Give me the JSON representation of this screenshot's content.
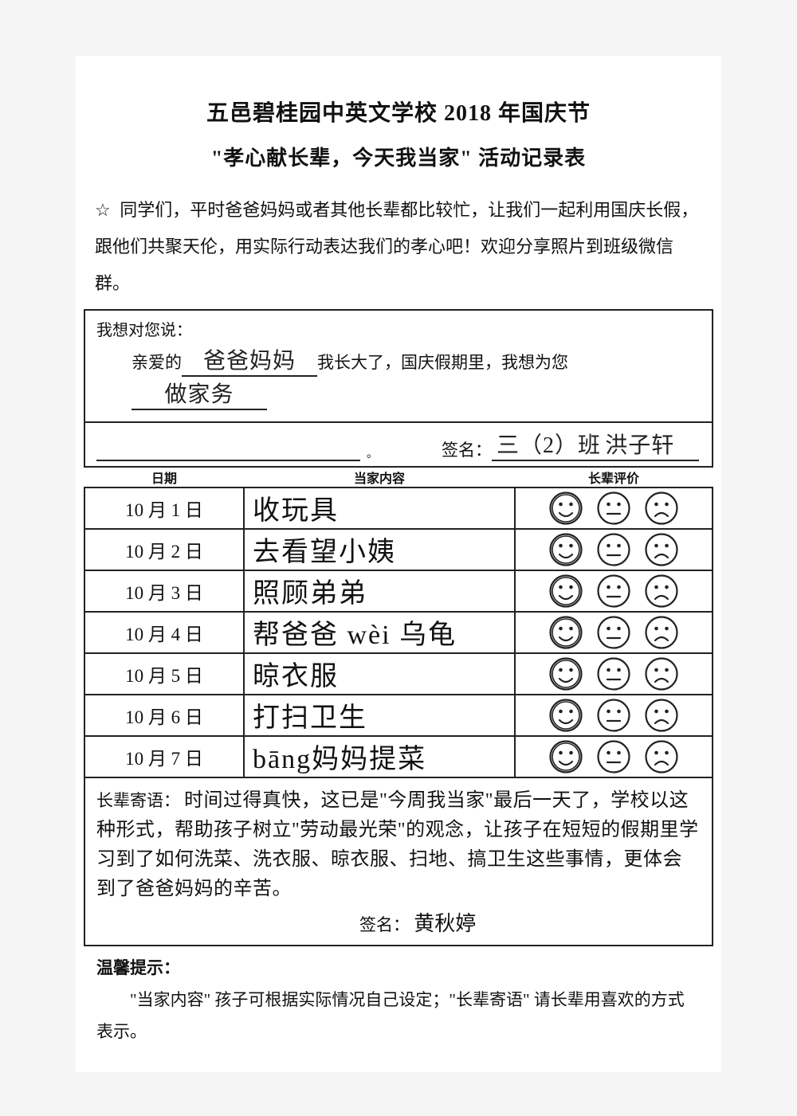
{
  "title_line1": "五邑碧桂园中英文学校 2018 年国庆节",
  "title_line2": "\"孝心献长辈，今天我当家\" 活动记录表",
  "star": "☆",
  "intro": "同学们，平时爸爸妈妈或者其他长辈都比较忙，让我们一起利用国庆长假，跟他们共聚天伦，用实际行动表达我们的孝心吧！欢迎分享照片到班级微信群。",
  "say_label": "我想对您说：",
  "dear_prefix": "亲爱的",
  "dear_fill": "爸爸妈妈",
  "dear_mid": "我长大了，国庆假期里，我想为您",
  "dear_fill2": "做家务",
  "sig_period": "。",
  "sig_label": "签名：",
  "sig_class_prefix": "三（2）班",
  "sig_name": "洪子轩",
  "headers": {
    "date": "日期",
    "content": "当家内容",
    "rating": "长辈评价"
  },
  "rows": [
    {
      "date": "10 月 1 日",
      "content": "收玩具",
      "selected": 0
    },
    {
      "date": "10 月 2 日",
      "content": "去看望小姨",
      "selected": 0
    },
    {
      "date": "10 月 3 日",
      "content": "照顾弟弟",
      "selected": 0
    },
    {
      "date": "10 月 4 日",
      "content": "帮爸爸 wèi 乌龟",
      "selected": 0
    },
    {
      "date": "10 月 5 日",
      "content": "晾衣服",
      "selected": 0
    },
    {
      "date": "10 月 6 日",
      "content": "打扫卫生",
      "selected": 0
    },
    {
      "date": "10 月 7 日",
      "content": "bāng妈妈提菜",
      "selected": 0
    }
  ],
  "faces": {
    "types": [
      "smile",
      "neutral",
      "frown"
    ]
  },
  "message_label": "长辈寄语：",
  "message_hw": "时间过得真快，这已是\"今周我当家\"最后一天了，学校以这种形式，帮助孩子树立\"劳动最光荣\"的观念，让孩子在短短的假期里学习到了如何洗菜、洗衣服、晾衣服、扫地、搞卫生这些事情，更体会到了爸爸妈妈的辛苦。",
  "message_sig_label": "签名：",
  "message_sig_name": "黄秋婷",
  "tips_label": "温馨提示：",
  "tips_text": "\"当家内容\" 孩子可根据实际情况自己设定；\"长辈寄语\" 请长辈用喜欢的方式表示。",
  "colors": {
    "page_bg": "#ffffff",
    "body_bg": "#f5f5f5",
    "line": "#222222",
    "text": "#111111"
  }
}
